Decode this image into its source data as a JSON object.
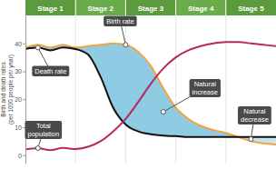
{
  "chart_data": {
    "type": "line",
    "y_label": "Birth and death rates (per 1000 people per year)",
    "stages": [
      "Stage 1",
      "Stage 2",
      "Stage 3",
      "Stage 4",
      "Stage 5"
    ],
    "x": [
      0,
      0.25,
      0.5,
      0.75,
      1,
      1.25,
      1.5,
      1.75,
      2,
      2.25,
      2.5,
      2.75,
      3,
      3.25,
      3.5,
      3.75,
      4,
      4.25,
      4.5,
      4.75,
      5
    ],
    "xlim": [
      0,
      5
    ],
    "ylim": [
      -3,
      50
    ],
    "yticks": [
      0,
      10,
      20,
      30,
      40
    ],
    "grid": false,
    "tick_labels": "y",
    "series": [
      {
        "name": "Birth rate",
        "color": "#f4a340",
        "values": [
          38.5,
          39.5,
          38.5,
          39.5,
          38.5,
          39,
          39.5,
          40,
          39.5,
          37,
          32,
          24,
          17,
          13,
          10.5,
          9,
          8,
          6.5,
          5,
          4.2,
          3.8
        ]
      },
      {
        "name": "Death rate",
        "color": "#111111",
        "values": [
          38,
          38.5,
          37.5,
          38.5,
          38,
          36,
          28,
          17,
          11,
          8.5,
          7.5,
          7,
          6.8,
          6.5,
          6.5,
          6.5,
          6.5,
          6.5,
          6.5,
          6.5,
          6.5
        ]
      },
      {
        "name": "Total population",
        "color": "#b7285f",
        "values": [
          2,
          2.5,
          1.8,
          2.6,
          2.2,
          3,
          5,
          8.5,
          13,
          19,
          25.5,
          31,
          35,
          37.5,
          39,
          40,
          40.5,
          40.5,
          40,
          39.5,
          39
        ]
      }
    ],
    "areas": [
      {
        "name": "Natural increase",
        "color": "#8fcbe3"
      },
      {
        "name": "Natural decrease",
        "color": "#c4e4f0"
      }
    ]
  }
}
